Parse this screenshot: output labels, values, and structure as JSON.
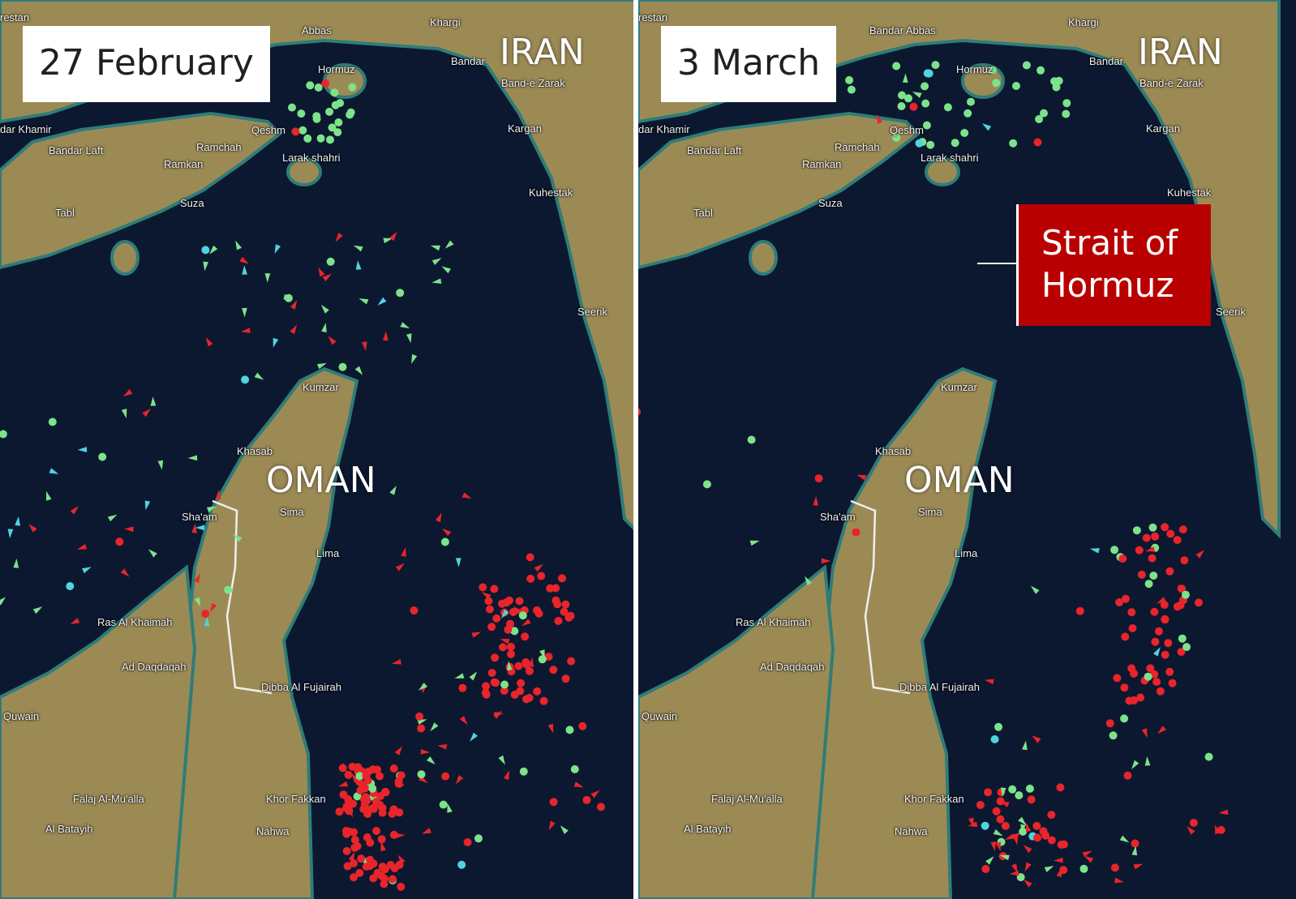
{
  "panels": [
    {
      "date": "27 February"
    },
    {
      "date": "3 March"
    }
  ],
  "countries": {
    "iran": "IRAN",
    "oman": "OMAN"
  },
  "annotation": {
    "strait": "Strait of Hormuz"
  },
  "places": {
    "bandar_abbas_left": "Abbas",
    "bandar_abbas_right": "Bandar Abbas",
    "khargi": "Khargi",
    "hormuz": "Hormuz",
    "bandar": "Bandar",
    "band_e_zarak": "Band-e Zarak",
    "kargan": "Kargan",
    "kuhestak": "Kuhestak",
    "seerik": "Seerik",
    "qeshm": "Qeshm",
    "ramchah": "Ramchah",
    "ramkan": "Ramkan",
    "larak_shahri": "Larak shahri",
    "bandar_laft": "Bandar Laft",
    "khamir": "dar Khamir",
    "suza": "Suza",
    "tabl": "Tabl",
    "kumzar": "Kumzar",
    "khasab": "Khasab",
    "sima": "Sima",
    "shaam": "Sha'am",
    "lima": "Lima",
    "ras_al_khaimah": "Ras Al Khaimah",
    "ad_daqdaqah": "Ad Daqdaqah",
    "dibba": "Dibba Al Fujairah",
    "quwain": "Quwain",
    "falaj": "Falaj Al-Mu'alla",
    "al_batayih": "Al Batayih",
    "khor_fakkan": "Khor Fakkan",
    "nahwa": "Nahwa",
    "arestan": "restan"
  },
  "colors": {
    "water": "#0c1830",
    "land": "#9c8a55",
    "ship_tanker": "#e8252b",
    "ship_cargo": "#7de38a",
    "ship_other": "#4fd4e0",
    "annotation": "#b80000"
  }
}
